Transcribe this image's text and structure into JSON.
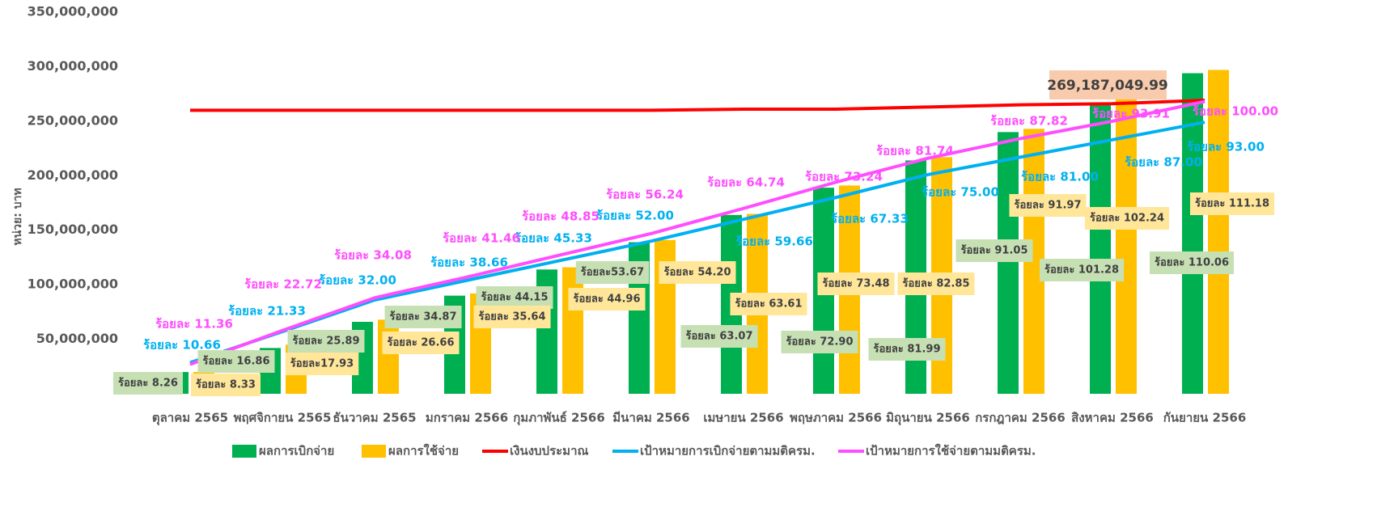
{
  "chart_data": {
    "type": "bar-line",
    "y_label": "หน่วย: บาท",
    "annotation": "269,187,049.99",
    "categories": [
      "ตุลาคม 2565",
      "พฤศจิกายน 2565",
      "ธันวาคม 2565",
      "มกราคม 2566",
      "กุมภาพันธ์ 2566",
      "มีนาคม 2566",
      "เมษายน 2566",
      "พฤษภาคม 2566",
      "มิถุนายน 2566",
      "กรกฎาคม 2566",
      "สิงหาคม 2566",
      "กันยายน 2566"
    ],
    "ylim": [
      0,
      350000000
    ],
    "yticks": [
      {
        "value": 0,
        "label": "-"
      },
      {
        "value": 50000000,
        "label": "50,000,000"
      },
      {
        "value": 100000000,
        "label": "100,000,000"
      },
      {
        "value": 150000000,
        "label": "150,000,000"
      },
      {
        "value": 200000000,
        "label": "200,000,000"
      },
      {
        "value": 250000000,
        "label": "250,000,000"
      },
      {
        "value": 300000000,
        "label": "300,000,000"
      },
      {
        "value": 350000000,
        "label": "350,000,000"
      }
    ],
    "series": [
      {
        "name": "ผลการเบิกจ่าย",
        "type": "bar",
        "color": "#00b050",
        "values": [
          20000000,
          42000000,
          66000000,
          90000000,
          114000000,
          139000000,
          164000000,
          189000000,
          214000000,
          240000000,
          267000000,
          294000000
        ],
        "labels": [
          "ร้อยละ 8.26",
          "ร้อยละ 16.86",
          "ร้อยละ 25.89",
          "ร้อยละ 34.87",
          "ร้อยละ 44.15",
          "ร้อยละ53.67",
          "ร้อยละ 63.07",
          "ร้อยละ 72.90",
          "ร้อยละ 81.99",
          "ร้อยละ 91.05",
          "ร้อยละ 101.28",
          "ร้อยละ 110.06"
        ]
      },
      {
        "name": "ผลการใช้จ่าย",
        "type": "bar",
        "color": "#ffc000",
        "values": [
          20000000,
          45000000,
          68000000,
          92000000,
          116000000,
          141000000,
          165000000,
          191000000,
          217000000,
          243000000,
          270000000,
          297000000
        ],
        "labels": [
          "ร้อยละ 8.33",
          "ร้อยละ17.93",
          "ร้อยละ 26.66",
          "ร้อยละ 35.64",
          "ร้อยละ 44.96",
          "ร้อยละ 54.20",
          "ร้อยละ 63.61",
          "ร้อยละ 73.48",
          "ร้อยละ 82.85",
          "ร้อยละ 91.97",
          "ร้อยละ 102.24",
          "ร้อยละ 111.18"
        ]
      },
      {
        "name": "เงินงบประมาณ",
        "type": "line",
        "color": "#ff0000",
        "values": [
          260000000,
          260000000,
          260000000,
          260000000,
          260000000,
          260000000,
          261000000,
          261000000,
          263000000,
          265000000,
          266000000,
          269187049.99
        ]
      },
      {
        "name": "เป้าหมายการเบิกจ่ายตามมติครม.",
        "type": "line",
        "color": "#00b0f0",
        "values": [
          28600000,
          57000000,
          86000000,
          104000000,
          122000000,
          140000000,
          160000000,
          180000000,
          201000000,
          217000000,
          233000000,
          249000000
        ],
        "labels": [
          "ร้อยละ 10.66",
          "ร้อยละ 21.33",
          "ร้อยละ 32.00",
          "ร้อยละ 38.66",
          "ร้อยละ 45.33",
          "ร้อยละ 52.00",
          "ร้อยละ 59.66",
          "ร้อยละ 67.33",
          "ร้อยละ 75.00",
          "ร้อยละ 81.00",
          "ร้อยละ 87.00",
          "ร้อยละ 93.00"
        ]
      },
      {
        "name": "เป้าหมายการใช้จ่ายตามมติครม.",
        "type": "line",
        "color": "#ff4dff",
        "values": [
          27000000,
          58000000,
          88000000,
          107000000,
          127000000,
          147000000,
          170000000,
          194000000,
          216000000,
          234000000,
          250000000,
          268000000
        ],
        "labels": [
          "ร้อยละ 11.36",
          "ร้อยละ 22.72",
          "ร้อยละ 34.08",
          "ร้อยละ 41.46",
          "ร้อยละ 48.85",
          "ร้อยละ 56.24",
          "ร้อยละ 64.74",
          "ร้อยละ 73.24",
          "ร้อยละ 81.74",
          "ร้อยละ 87.82",
          "ร้อยละ 93.91",
          "ร้อยละ 100.00"
        ]
      }
    ]
  }
}
